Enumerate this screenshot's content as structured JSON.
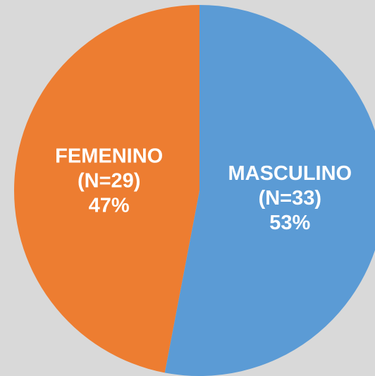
{
  "chart_data": {
    "type": "pie",
    "categories": [
      "MASCULINO",
      "FEMENINO"
    ],
    "values": [
      53,
      47
    ],
    "value_labels": [
      "53%",
      "47%"
    ],
    "counts": [
      33,
      29
    ],
    "count_labels": [
      "(N=33)",
      "(N=29)"
    ],
    "colors": [
      "#5b9bd5",
      "#ed7d31"
    ]
  }
}
